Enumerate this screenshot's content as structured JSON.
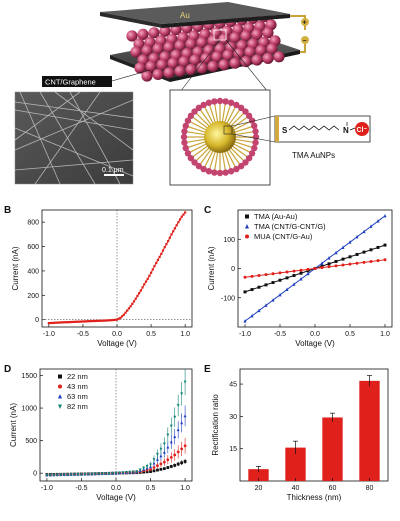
{
  "panel_a": {
    "electrode_label": "Au",
    "substrate_label": "CNT/Graphene",
    "scale_bar": "0.1 μm",
    "molecule_caption": "TMA AuNPs",
    "molecule_s": "S",
    "molecule_n": "N",
    "molecule_cl": "Cl⁻",
    "plus_icon": "+",
    "minus_icon": "−"
  },
  "chart_data": [
    {
      "id": "B",
      "panel_letter": "B",
      "type": "line",
      "xlabel": "Voltage (V)",
      "ylabel": "Current (nA)",
      "xlim": [
        -1.1,
        1.1
      ],
      "ylim": [
        -60,
        900
      ],
      "xticks": [
        "-1.0",
        "-0.5",
        "0.0",
        "0.5",
        "1.0"
      ],
      "yticks": [
        "0",
        "200",
        "400",
        "600",
        "800"
      ],
      "series": [
        {
          "color": "#e0201b",
          "x": [
            -1.0,
            -0.9,
            -0.8,
            -0.7,
            -0.6,
            -0.5,
            -0.4,
            -0.3,
            -0.2,
            -0.1,
            0.0,
            0.05,
            0.1,
            0.15,
            0.2,
            0.25,
            0.3,
            0.35,
            0.4,
            0.45,
            0.5,
            0.55,
            0.6,
            0.65,
            0.7,
            0.75,
            0.8,
            0.85,
            0.9,
            0.95,
            1.0
          ],
          "y": [
            -28,
            -25,
            -22,
            -20,
            -17,
            -15,
            -12,
            -10,
            -8,
            -5,
            0,
            15,
            40,
            75,
            110,
            150,
            195,
            240,
            290,
            335,
            385,
            440,
            490,
            540,
            595,
            645,
            700,
            750,
            800,
            845,
            880
          ]
        }
      ]
    },
    {
      "id": "C",
      "panel_letter": "C",
      "type": "line",
      "xlabel": "Voltage (V)",
      "ylabel": "Current (nA)",
      "xlim": [
        -1.1,
        1.1
      ],
      "ylim": [
        -200,
        200
      ],
      "xticks": [
        "-1.0",
        "-0.5",
        "0.0",
        "0.5",
        "1.0"
      ],
      "yticks": [
        "-100",
        "0",
        "100"
      ],
      "legend_position": "top-left",
      "series": [
        {
          "name": "TMA  (Au-Au)",
          "color": "#111111",
          "marker": "square",
          "x": [
            -1.0,
            0.0,
            1.0
          ],
          "y": [
            -80,
            0,
            80
          ]
        },
        {
          "name": "TMA  (CNT/G-CNT/G)",
          "color": "#1f3fbf",
          "marker": "triangle",
          "x": [
            -1.0,
            0.0,
            1.0
          ],
          "y": [
            -180,
            0,
            180
          ]
        },
        {
          "name": "MUA  (CNT/G-Au)",
          "color": "#e0201b",
          "marker": "circle",
          "x": [
            -1.0,
            0.0,
            1.0
          ],
          "y": [
            -30,
            0,
            30
          ]
        }
      ]
    },
    {
      "id": "D",
      "panel_letter": "D",
      "type": "line",
      "xlabel": "Voltage (V)",
      "ylabel": "Current (nA)",
      "xlim": [
        -1.1,
        1.1
      ],
      "ylim": [
        -120,
        1600
      ],
      "xticks": [
        "-1.0",
        "-0.5",
        "0.0",
        "0.5",
        "1.0"
      ],
      "yticks": [
        "0",
        "500",
        "1000",
        "1500"
      ],
      "legend_position": "top-left",
      "x": [
        -1.0,
        -0.5,
        0.0,
        0.3,
        0.5,
        0.7,
        0.85,
        1.0
      ],
      "series": [
        {
          "name": "22 nm",
          "color": "#111111",
          "marker": "square",
          "y": [
            -20,
            -12,
            0,
            8,
            25,
            70,
            120,
            180
          ],
          "err": [
            3,
            3,
            3,
            5,
            10,
            20,
            30,
            40
          ]
        },
        {
          "name": "43 nm",
          "color": "#e0201b",
          "marker": "circle",
          "y": [
            -25,
            -15,
            0,
            15,
            60,
            170,
            280,
            420
          ],
          "err": [
            3,
            3,
            3,
            10,
            30,
            60,
            90,
            120
          ]
        },
        {
          "name": "63 nm",
          "color": "#1f3fbf",
          "marker": "triangle",
          "y": [
            -28,
            -16,
            0,
            20,
            100,
            320,
            560,
            880
          ],
          "err": [
            3,
            3,
            3,
            12,
            40,
            80,
            120,
            160
          ]
        },
        {
          "name": "82 nm",
          "color": "#15847a",
          "marker": "tri-down",
          "y": [
            -30,
            -18,
            0,
            25,
            130,
            450,
            860,
            1400
          ],
          "err": [
            3,
            3,
            3,
            15,
            50,
            100,
            150,
            200
          ]
        }
      ]
    },
    {
      "id": "E",
      "panel_letter": "E",
      "type": "bar",
      "xlabel": "Thickness (nm)",
      "ylabel": "Rectification ratio",
      "categories": [
        "20",
        "40",
        "60",
        "80"
      ],
      "values": [
        5.5,
        15.5,
        29.5,
        46.5
      ],
      "errors": [
        1.3,
        3.0,
        2.0,
        2.5
      ],
      "ylim": [
        0,
        52
      ],
      "yticks": [
        "15",
        "30",
        "45"
      ],
      "color": "#e0201b"
    }
  ]
}
